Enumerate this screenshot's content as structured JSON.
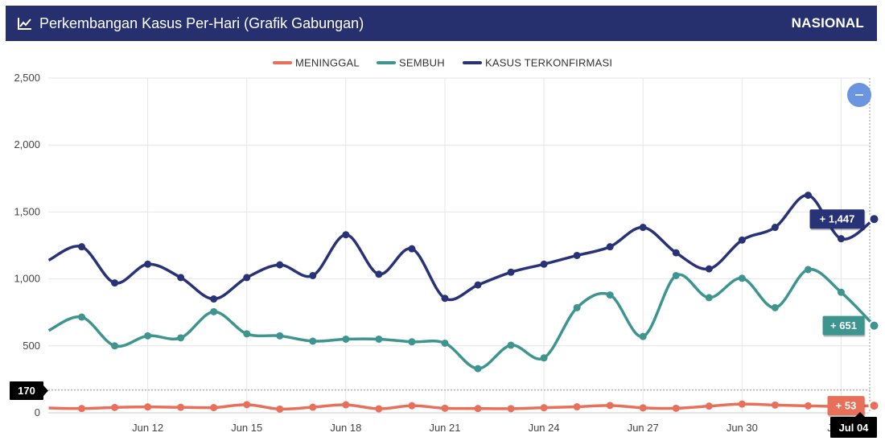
{
  "header": {
    "title": "Perkembangan Kasus Per-Hari (Grafik Gabungan)",
    "region": "NASIONAL"
  },
  "colors": {
    "header_bg": "#26306f",
    "meninggal": "#e8705a",
    "sembuh": "#3e948f",
    "terkonfirmasi": "#283276",
    "zoom_button": "#6b95e0",
    "cursor_tag": "#000000"
  },
  "zoom_button_icon": "minus-icon",
  "crosshair_value": "170",
  "crosshair_date": "Jul 04",
  "chart_data": {
    "type": "line",
    "title": "Perkembangan Kasus Per-Hari (Grafik Gabungan)",
    "x": [
      "Jun 09",
      "Jun 10",
      "Jun 11",
      "Jun 12",
      "Jun 13",
      "Jun 14",
      "Jun 15",
      "Jun 16",
      "Jun 17",
      "Jun 18",
      "Jun 19",
      "Jun 20",
      "Jun 21",
      "Jun 22",
      "Jun 23",
      "Jun 24",
      "Jun 25",
      "Jun 26",
      "Jun 27",
      "Jun 28",
      "Jun 29",
      "Jun 30",
      "Jul 01",
      "Jul 02",
      "Jul 03",
      "Jul 04"
    ],
    "x_ticks": [
      "Jun 12",
      "Jun 15",
      "Jun 18",
      "Jun 21",
      "Jun 24",
      "Jun 27",
      "Jun 30",
      "Jul 03"
    ],
    "y_ticks": [
      "0",
      "500",
      "1,000",
      "1,500",
      "2,000",
      "2,500"
    ],
    "ylim": [
      0,
      2500
    ],
    "grid": true,
    "legend_position": "top-center",
    "series": [
      {
        "name": "MENINGGAL",
        "values": [
          36,
          32,
          40,
          44,
          41,
          39,
          61,
          28,
          42,
          60,
          30,
          53,
          34,
          32,
          31,
          38,
          45,
          55,
          37,
          34,
          50,
          65,
          58,
          52,
          48,
          53
        ],
        "last_label": "+ 53"
      },
      {
        "name": "SEMBUH",
        "values": [
          615,
          715,
          500,
          575,
          560,
          755,
          590,
          575,
          535,
          550,
          550,
          530,
          520,
          330,
          505,
          410,
          785,
          880,
          570,
          1025,
          860,
          1005,
          785,
          1070,
          900,
          651
        ],
        "last_label": "+ 651"
      },
      {
        "name": "KASUS TERKONFIRMASI",
        "values": [
          1140,
          1240,
          970,
          1110,
          1010,
          850,
          1010,
          1105,
          1025,
          1330,
          1035,
          1225,
          855,
          955,
          1050,
          1110,
          1175,
          1240,
          1385,
          1195,
          1075,
          1290,
          1385,
          1625,
          1300,
          1447
        ],
        "last_label": "+ 1,447"
      }
    ]
  }
}
